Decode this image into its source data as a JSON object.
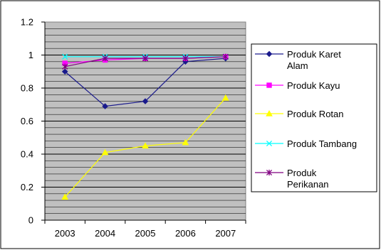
{
  "chart_data": {
    "type": "line",
    "categories": [
      "2003",
      "2004",
      "2005",
      "2006",
      "2007"
    ],
    "ylim": [
      0,
      1.2
    ],
    "yticks": [
      "0",
      "0.2",
      "0.4",
      "0.6",
      "0.8",
      "1",
      "1.2"
    ],
    "grid": true,
    "legend_position": "right",
    "series": [
      {
        "name_lines": [
          "Produk Karet",
          "Alam"
        ],
        "values": [
          0.9,
          0.69,
          0.72,
          0.96,
          0.98
        ],
        "color": "#1a1a8c",
        "marker": "diamond"
      },
      {
        "name_lines": [
          "Produk Kayu"
        ],
        "values": [
          0.95,
          0.97,
          0.98,
          0.98,
          0.99
        ],
        "color": "#ff00ff",
        "marker": "square"
      },
      {
        "name_lines": [
          "Produk Rotan"
        ],
        "values": [
          0.14,
          0.41,
          0.45,
          0.47,
          0.74
        ],
        "color": "#ffff00",
        "marker": "triangle"
      },
      {
        "name_lines": [
          "Produk Tambang"
        ],
        "values": [
          0.99,
          0.99,
          0.99,
          0.99,
          0.99
        ],
        "color": "#00ffff",
        "marker": "x"
      },
      {
        "name_lines": [
          "Produk",
          "Perikanan"
        ],
        "values": [
          0.93,
          0.98,
          0.98,
          0.98,
          0.99
        ],
        "color": "#800080",
        "marker": "star"
      }
    ]
  }
}
